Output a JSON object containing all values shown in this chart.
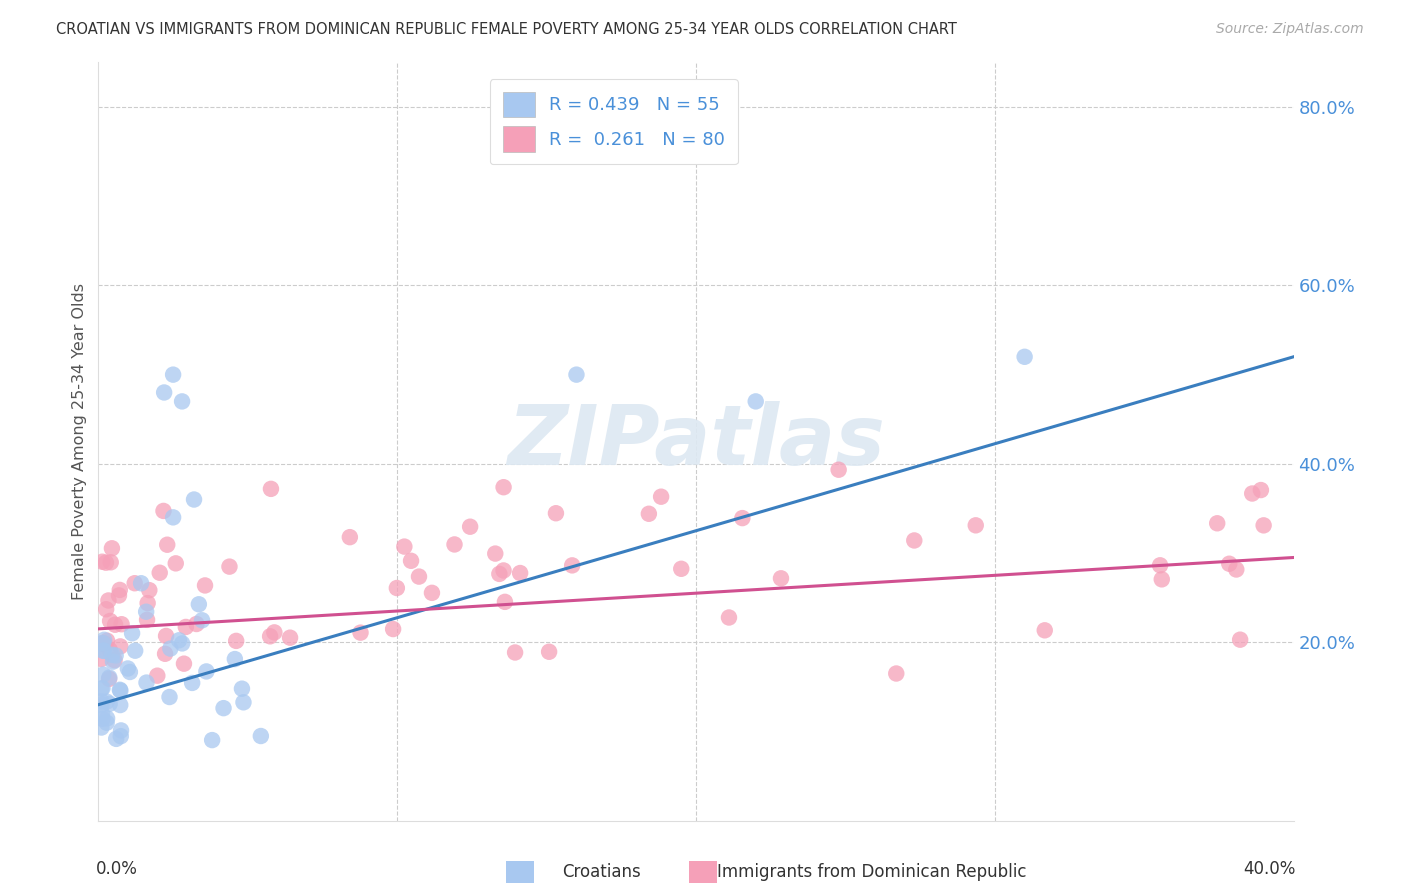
{
  "title": "CROATIAN VS IMMIGRANTS FROM DOMINICAN REPUBLIC FEMALE POVERTY AMONG 25-34 YEAR OLDS CORRELATION CHART",
  "source": "Source: ZipAtlas.com",
  "ylabel": "Female Poverty Among 25-34 Year Olds",
  "xlim": [
    0.0,
    0.4
  ],
  "ylim": [
    0.0,
    0.85
  ],
  "ytick_vals": [
    0.0,
    0.2,
    0.4,
    0.6,
    0.8
  ],
  "ytick_labels": [
    "",
    "20.0%",
    "40.0%",
    "60.0%",
    "80.0%"
  ],
  "blue_scatter_color": "#a8c8f0",
  "blue_line_color": "#3a7ebf",
  "pink_scatter_color": "#f5a0b8",
  "pink_line_color": "#d05090",
  "legend1_R": "0.439",
  "legend1_N": "55",
  "legend2_R": "0.261",
  "legend2_N": "80",
  "blue_line_x0": 0.0,
  "blue_line_y0": 0.13,
  "blue_line_x1": 0.4,
  "blue_line_y1": 0.52,
  "pink_line_x0": 0.0,
  "pink_line_y0": 0.215,
  "pink_line_x1": 0.4,
  "pink_line_y1": 0.295,
  "watermark": "ZIPatlas",
  "grid_color": "#cccccc",
  "title_color": "#333333",
  "source_color": "#aaaaaa",
  "ylabel_color": "#555555",
  "ytick_color": "#4a90d9",
  "xtick_color": "#555555"
}
